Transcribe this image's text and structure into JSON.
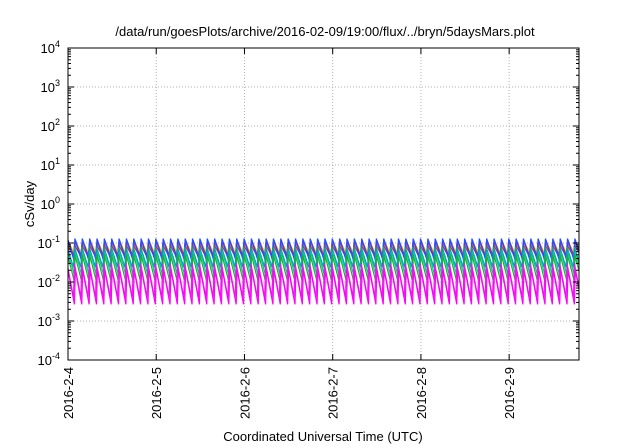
{
  "chart_data": {
    "type": "line",
    "title": "/data/run/goesPlots/archive/2016-02-09/19:00/flux/../bryn/5daysMars.plot",
    "xlabel": "Coordinated Universal Time (UTC)",
    "ylabel": "cSv/day",
    "y_scale": "log",
    "ylim": [
      0.0001,
      10000
    ],
    "y_ticks": [
      {
        "base": "10",
        "exp": "4"
      },
      {
        "base": "10",
        "exp": "3"
      },
      {
        "base": "10",
        "exp": "2"
      },
      {
        "base": "10",
        "exp": "1"
      },
      {
        "base": "10",
        "exp": "0"
      },
      {
        "base": "10",
        "exp": "-1"
      },
      {
        "base": "10",
        "exp": "-2"
      },
      {
        "base": "10",
        "exp": "-3"
      },
      {
        "base": "10",
        "exp": "-4"
      }
    ],
    "xlim": [
      "2016-02-04T00:00",
      "2016-02-09T19:00"
    ],
    "x_ticks": [
      "2016-2-4",
      "2016-2-5",
      "2016-2-6",
      "2016-2-7",
      "2016-2-8",
      "2016-2-9"
    ],
    "grid": true,
    "legend": "none",
    "sawtooth_period_hours": 2,
    "series": [
      {
        "color": "#e6e600",
        "peak": 0.11,
        "trough": 0.05
      },
      {
        "color": "#ff7f0e",
        "peak": 0.1,
        "trough": 0.045
      },
      {
        "color": "#cc3333",
        "peak": 0.09,
        "trough": 0.04
      },
      {
        "color": "#8a2be2",
        "peak": 0.12,
        "trough": 0.035
      },
      {
        "color": "#2050ff",
        "peak": 0.13,
        "trough": 0.03
      },
      {
        "color": "#00a0c0",
        "peak": 0.08,
        "trough": 0.02
      },
      {
        "color": "#00c8a0",
        "peak": 0.06,
        "trough": 0.012
      },
      {
        "color": "#20b020",
        "peak": 0.05,
        "trough": 0.009
      },
      {
        "color": "#e020e0",
        "peak": 0.03,
        "trough": 0.003
      },
      {
        "color": "#ff00ff",
        "peak": 0.02,
        "trough": 0.002
      }
    ]
  }
}
